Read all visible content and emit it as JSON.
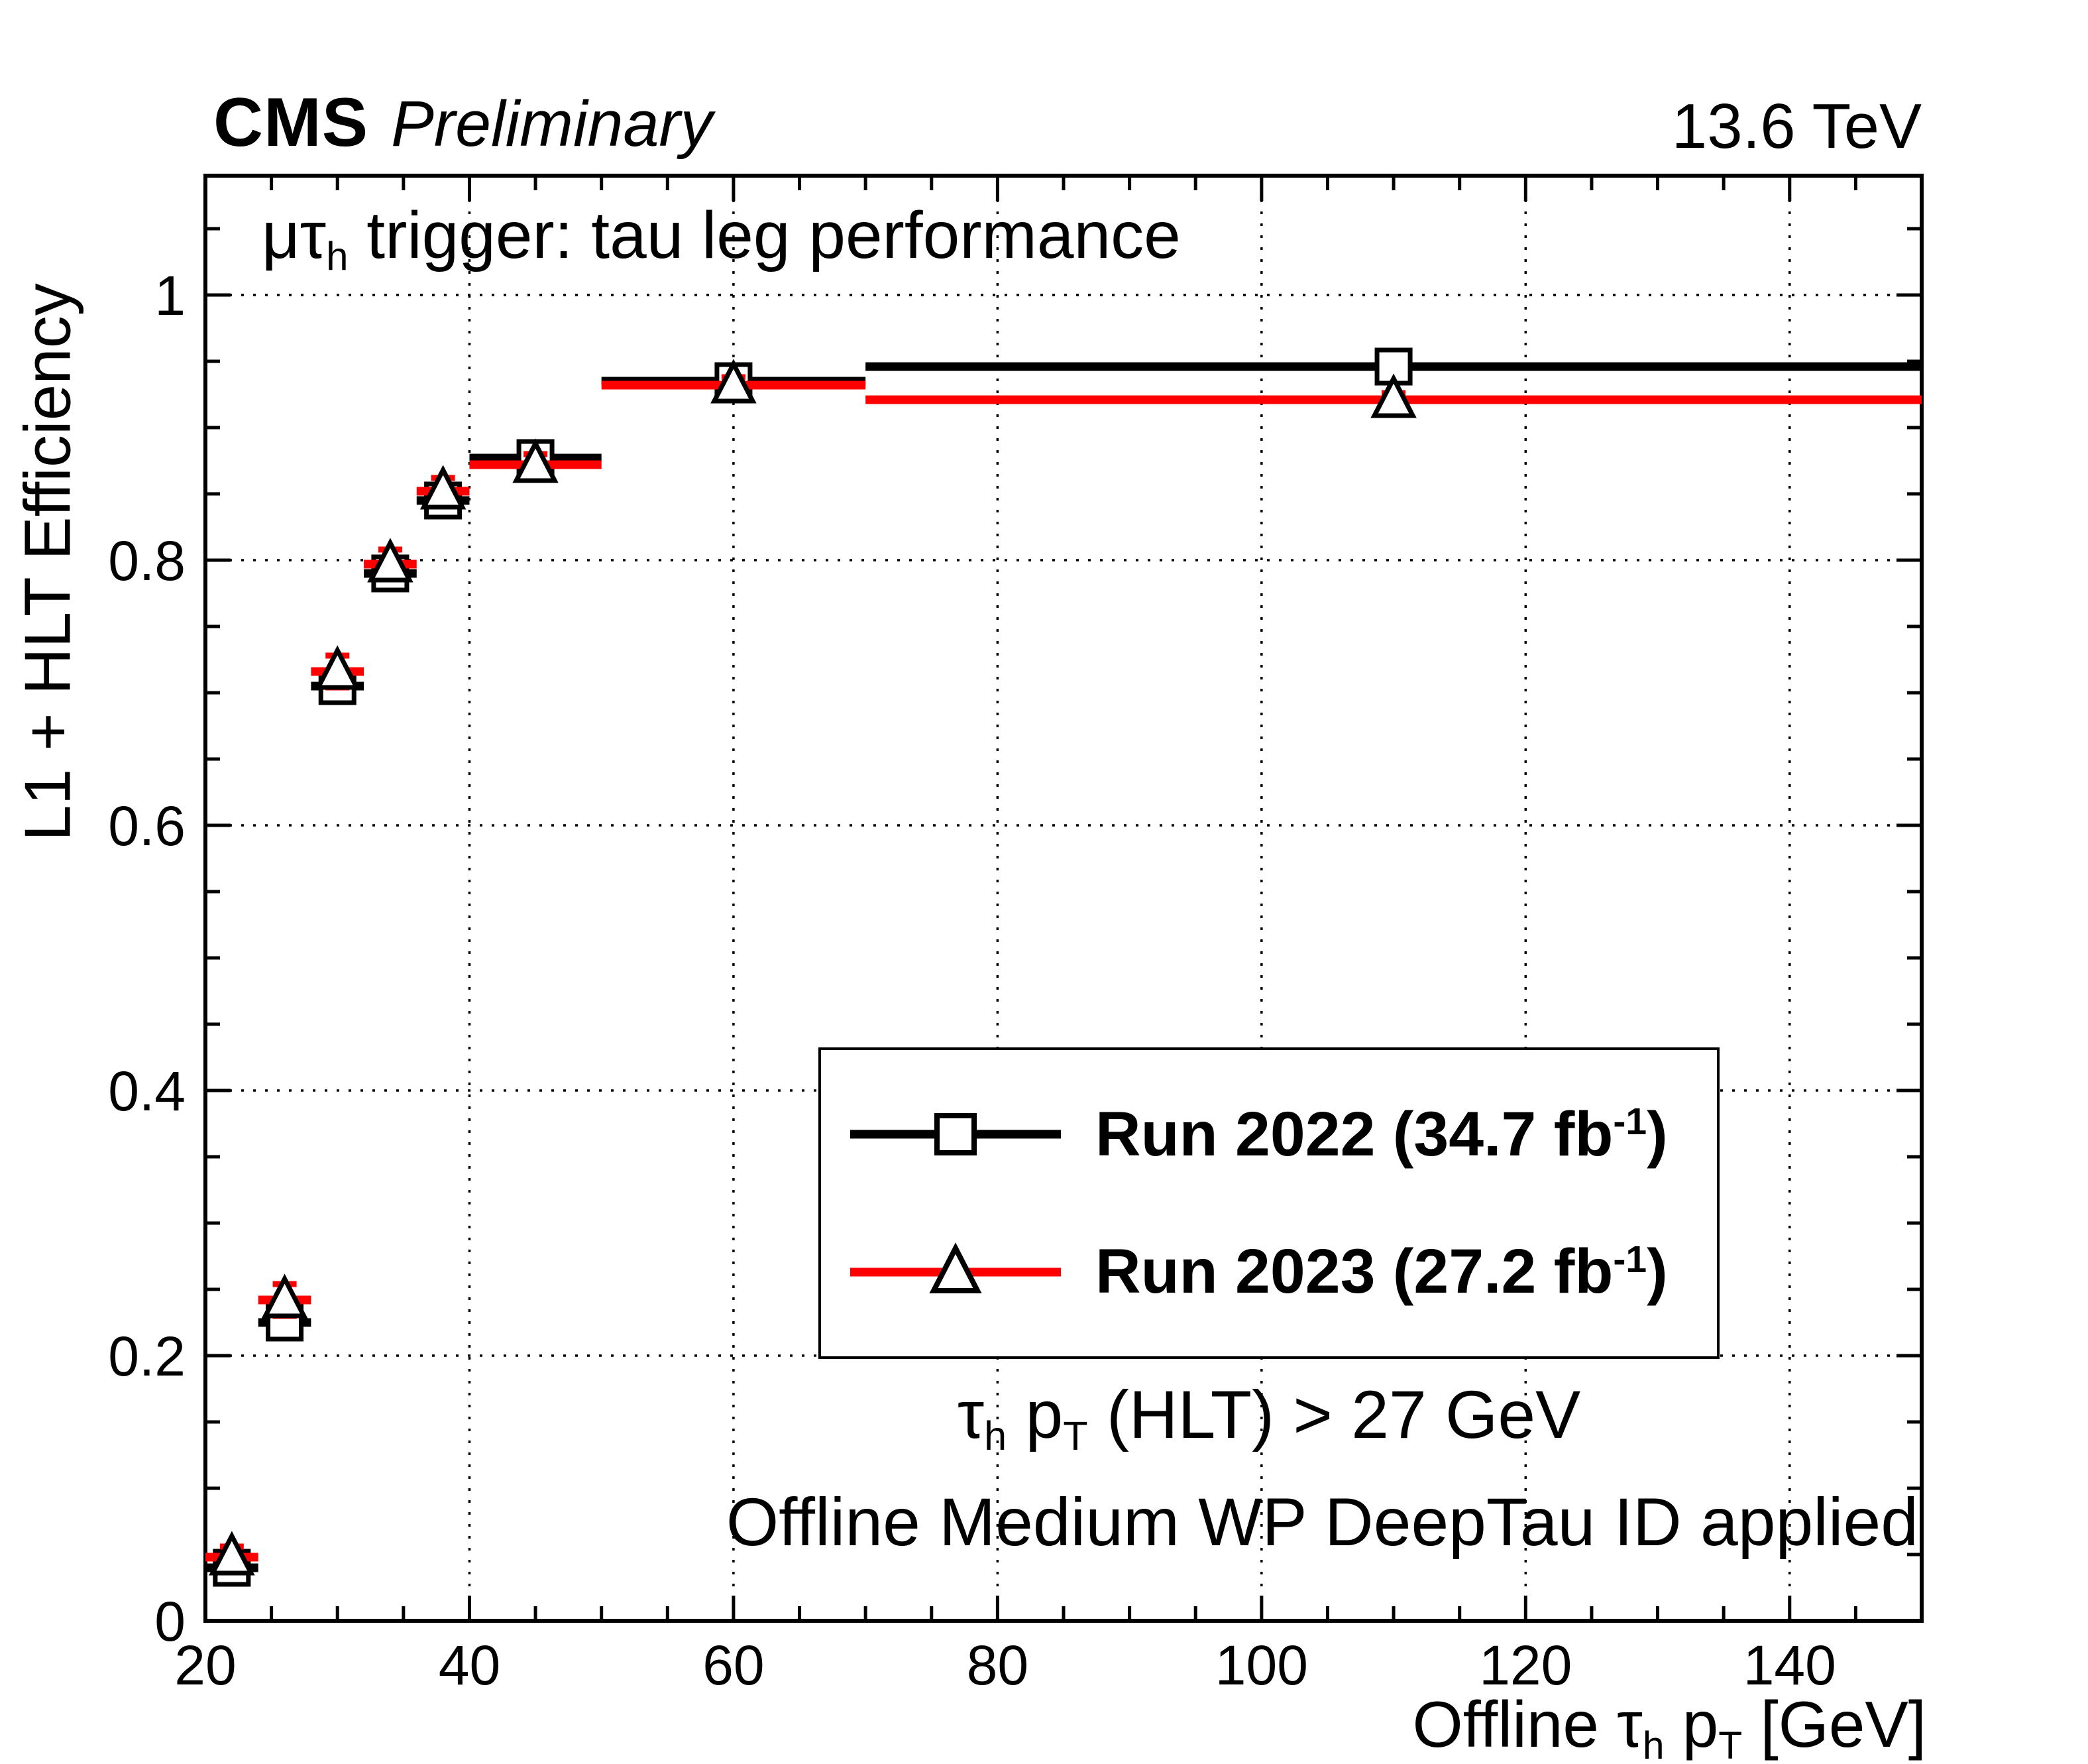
{
  "header": {
    "experiment": "CMS",
    "label": "Preliminary",
    "energy": "13.6 TeV"
  },
  "plot_annotation": {
    "main": "μτ",
    "sub": "h",
    "rest": " trigger: tau leg performance"
  },
  "axes": {
    "y_title": "L1 + HLT Efficiency",
    "x_title": {
      "pre": "Offline ",
      "tau": "τ",
      "tau_sub": "h",
      "p": " p",
      "p_sub": "T",
      "post": " [GeV]"
    }
  },
  "legend": {
    "entries": [
      {
        "text": "Run 2022 (34.7 fb",
        "sup": "-1",
        "end": ")"
      },
      {
        "text": "Run 2023 (27.2 fb",
        "sup": "-1",
        "end": ")"
      }
    ]
  },
  "cuts": {
    "line1": {
      "tau": "τ",
      "tau_sub": "h",
      "p": " p",
      "p_sub": "T",
      "rest": " (HLT) > 27 GeV"
    },
    "line2": "Offline Medium WP DeepTau ID applied"
  },
  "chart_data": {
    "type": "scatter",
    "title": "μτh trigger: tau leg performance",
    "xlabel": "Offline τh pT [GeV]",
    "ylabel": "L1 + HLT Efficiency",
    "xlim": [
      20,
      150
    ],
    "ylim": [
      0,
      1.09
    ],
    "x_ticks": [
      20,
      40,
      60,
      80,
      100,
      120,
      140
    ],
    "y_ticks": [
      0,
      0.2,
      0.4,
      0.6,
      0.8,
      1
    ],
    "grid": true,
    "grid_style": "dotted",
    "legend_position": "center-right",
    "series": [
      {
        "name": "Run 2022 (34.7 fb-1)",
        "color": "#000000",
        "marker": "square",
        "marker_outline": "#000000",
        "points": [
          {
            "x": 22,
            "xlow": 20,
            "xhigh": 24,
            "y": 0.04,
            "yerr": 0.006
          },
          {
            "x": 26,
            "xlow": 24,
            "xhigh": 28,
            "y": 0.225,
            "yerr": 0.01
          },
          {
            "x": 30,
            "xlow": 28,
            "xhigh": 32,
            "y": 0.705,
            "yerr": 0.01
          },
          {
            "x": 34,
            "xlow": 32,
            "xhigh": 36,
            "y": 0.79,
            "yerr": 0.01
          },
          {
            "x": 38,
            "xlow": 36,
            "xhigh": 40,
            "y": 0.845,
            "yerr": 0.009
          },
          {
            "x": 45,
            "xlow": 40,
            "xhigh": 50,
            "y": 0.877,
            "yerr": 0.007
          },
          {
            "x": 60,
            "xlow": 50,
            "xhigh": 70,
            "y": 0.935,
            "yerr": 0.005
          },
          {
            "x": 110,
            "xlow": 70,
            "xhigh": 150,
            "y": 0.946,
            "yerr": 0.004
          }
        ]
      },
      {
        "name": "Run 2023 (27.2 fb-1)",
        "color": "#ff0000",
        "marker": "triangle",
        "marker_outline": "#000000",
        "points": [
          {
            "x": 22,
            "xlow": 20,
            "xhigh": 24,
            "y": 0.048,
            "yerr": 0.008
          },
          {
            "x": 26,
            "xlow": 24,
            "xhigh": 28,
            "y": 0.242,
            "yerr": 0.012
          },
          {
            "x": 30,
            "xlow": 28,
            "xhigh": 32,
            "y": 0.716,
            "yerr": 0.012
          },
          {
            "x": 34,
            "xlow": 32,
            "xhigh": 36,
            "y": 0.797,
            "yerr": 0.011
          },
          {
            "x": 38,
            "xlow": 36,
            "xhigh": 40,
            "y": 0.852,
            "yerr": 0.01
          },
          {
            "x": 45,
            "xlow": 40,
            "xhigh": 50,
            "y": 0.872,
            "yerr": 0.008
          },
          {
            "x": 60,
            "xlow": 50,
            "xhigh": 70,
            "y": 0.932,
            "yerr": 0.006
          },
          {
            "x": 110,
            "xlow": 70,
            "xhigh": 150,
            "y": 0.921,
            "yerr": 0.005
          }
        ]
      }
    ]
  }
}
